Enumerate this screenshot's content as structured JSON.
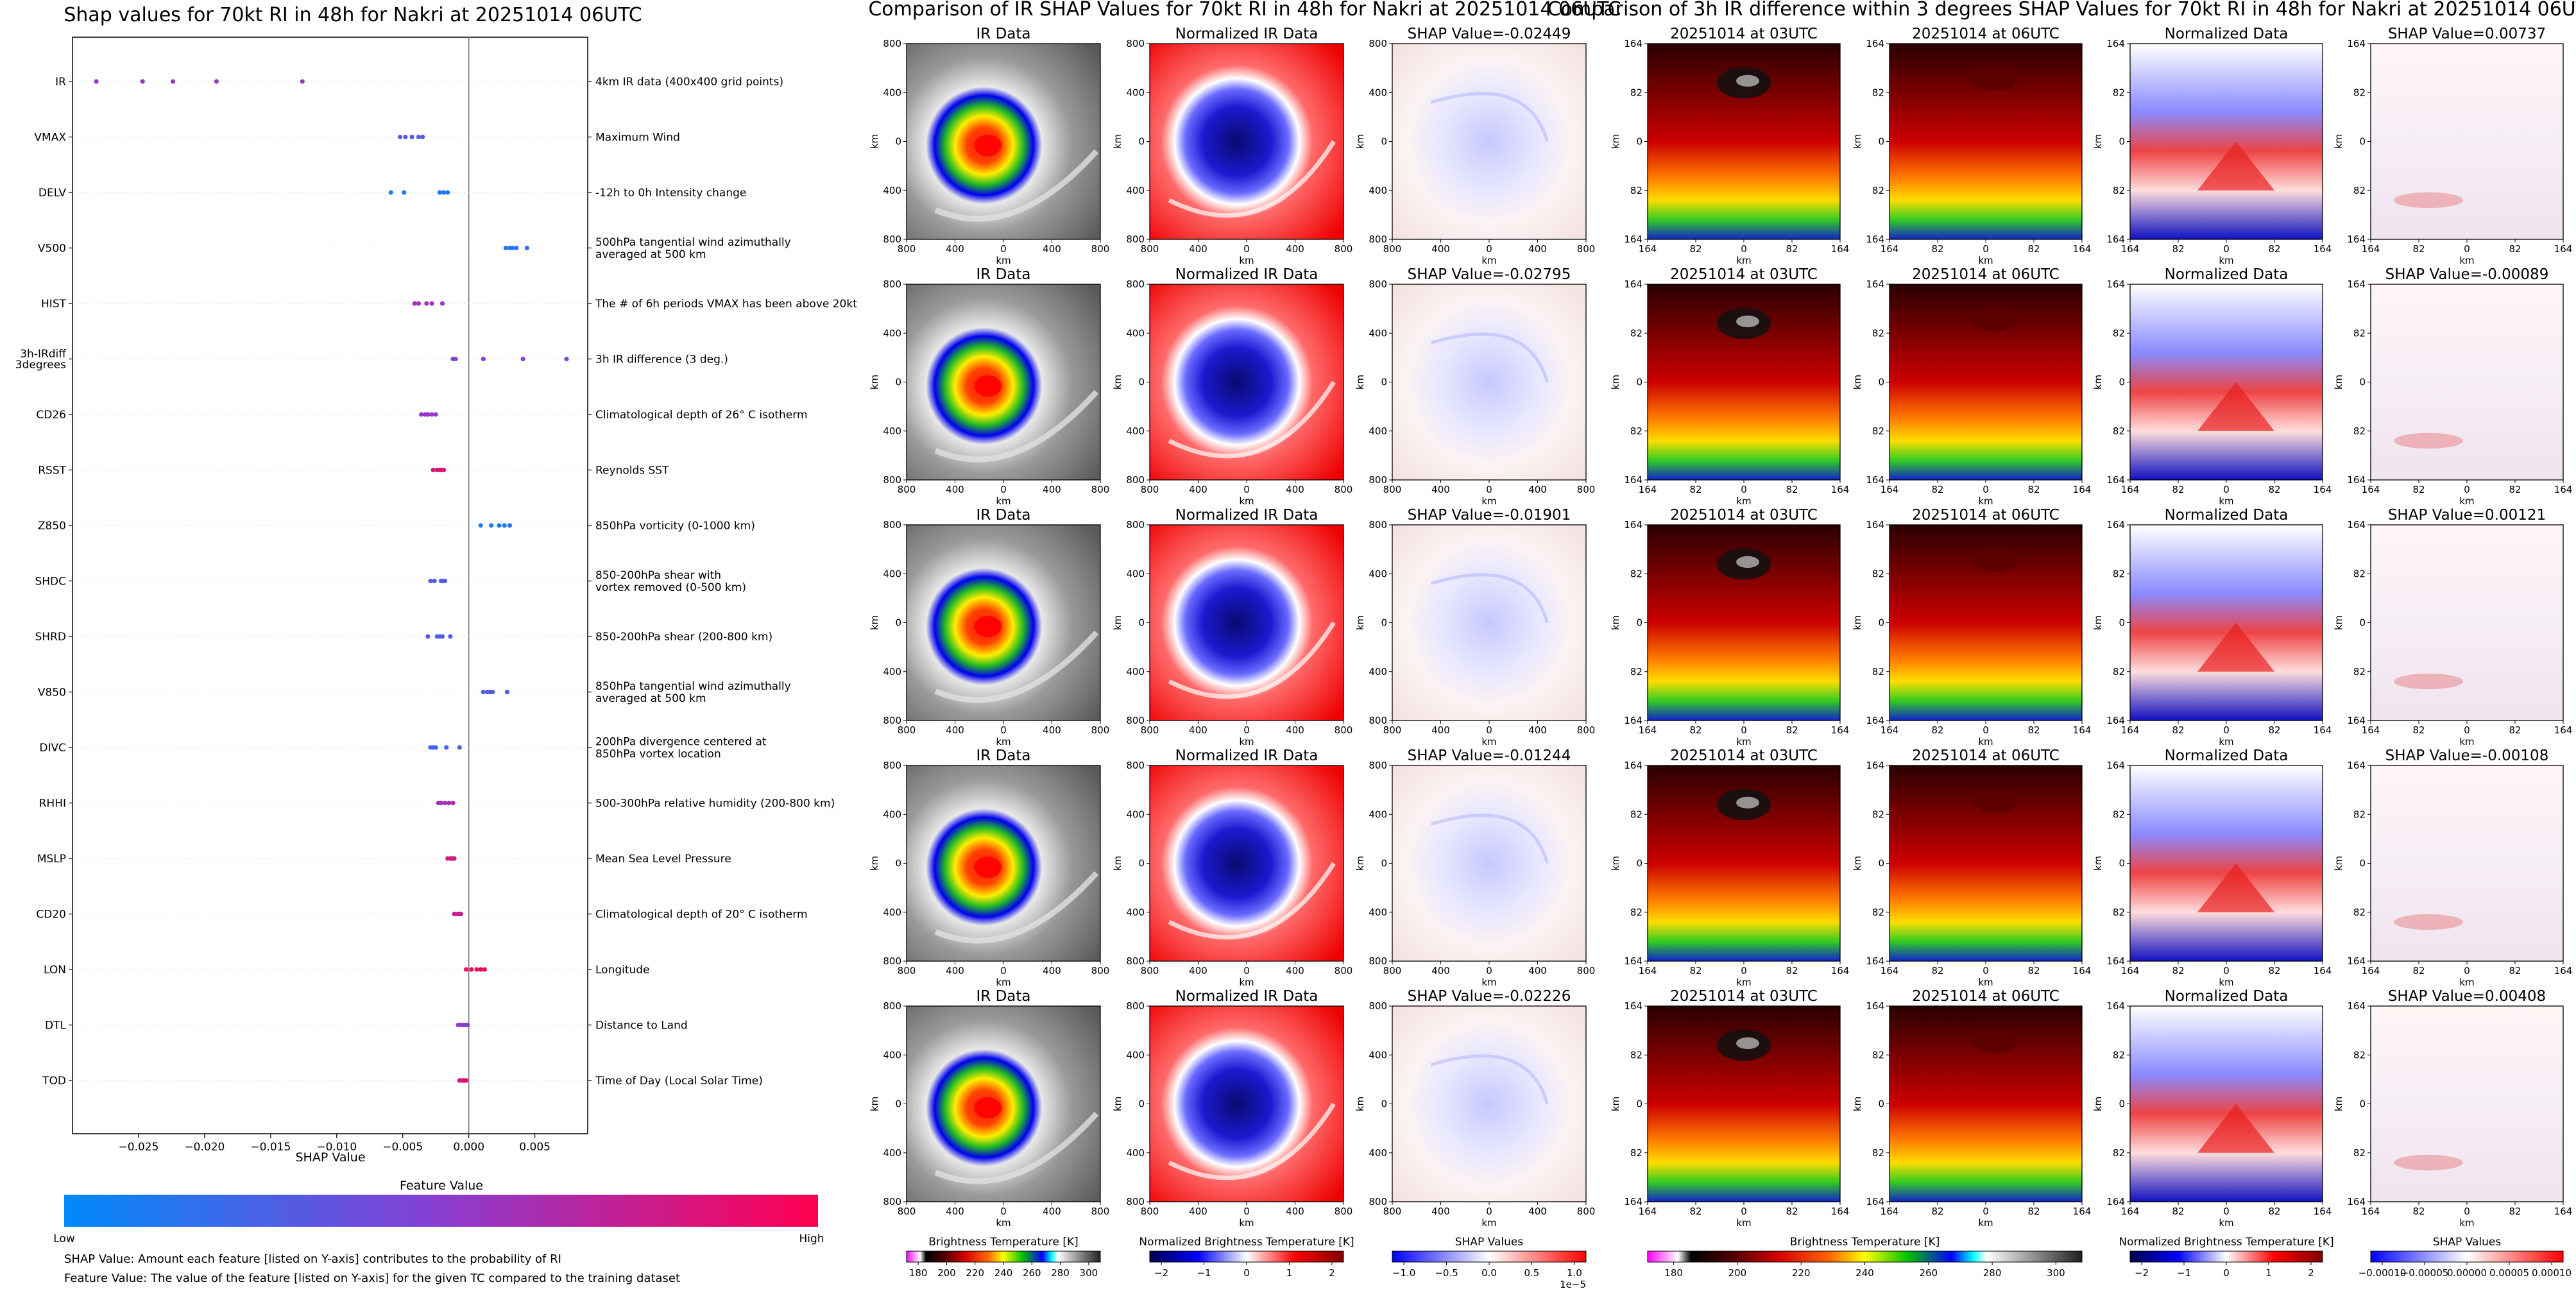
{
  "chart_data": [
    {
      "type": "scatter",
      "title": "Shap values for 70kt RI in 48h for Nakri at 20251014 06UTC",
      "xlabel": "SHAP Value",
      "xlim": [
        -0.03,
        0.009
      ],
      "xticks": [
        -0.025,
        -0.02,
        -0.015,
        -0.01,
        -0.005,
        0.0,
        0.005
      ],
      "xtick_labels": [
        "−0.025",
        "−0.020",
        "−0.015",
        "−0.010",
        "−0.005",
        "0.000",
        "0.005"
      ],
      "features": [
        {
          "code": "IR",
          "desc": "4km IR data (400x400 grid points)",
          "points": [
            [
              -0.0282,
              0.55
            ],
            [
              -0.0247,
              0.55
            ],
            [
              -0.0224,
              0.55
            ],
            [
              -0.0191,
              0.55
            ],
            [
              -0.0126,
              0.55
            ]
          ]
        },
        {
          "code": "VMAX",
          "desc": "Maximum Wind",
          "points": [
            [
              -0.0052,
              0.3
            ],
            [
              -0.0048,
              0.35
            ],
            [
              -0.0043,
              0.35
            ],
            [
              -0.0038,
              0.3
            ],
            [
              -0.0035,
              0.35
            ]
          ]
        },
        {
          "code": "DELV",
          "desc": "-12h to 0h Intensity change",
          "points": [
            [
              -0.0059,
              0.05
            ],
            [
              -0.0049,
              0.1
            ],
            [
              -0.0022,
              0.1
            ],
            [
              -0.0019,
              0.1
            ],
            [
              -0.0016,
              0.1
            ]
          ]
        },
        {
          "code": "V500",
          "desc": "500hPa tangential wind azimuthally\naveraged at 500 km",
          "points": [
            [
              0.0028,
              0.15
            ],
            [
              0.0031,
              0.15
            ],
            [
              0.0033,
              0.15
            ],
            [
              0.0036,
              0.15
            ],
            [
              0.0044,
              0.15
            ]
          ]
        },
        {
          "code": "HIST",
          "desc": "The # of 6h periods VMAX has been above 20kt",
          "points": [
            [
              -0.0041,
              0.6
            ],
            [
              -0.0038,
              0.6
            ],
            [
              -0.0032,
              0.6
            ],
            [
              -0.0028,
              0.6
            ],
            [
              -0.002,
              0.5
            ]
          ]
        },
        {
          "code": "3h-IRdiff\n3degrees",
          "desc": "3h IR difference (3 deg.)",
          "points": [
            [
              -0.0012,
              0.45
            ],
            [
              -0.001,
              0.45
            ],
            [
              0.0011,
              0.45
            ],
            [
              0.0041,
              0.45
            ],
            [
              0.0074,
              0.45
            ]
          ]
        },
        {
          "code": "CD26",
          "desc": "Climatological depth of 26° C isotherm",
          "points": [
            [
              -0.0036,
              0.55
            ],
            [
              -0.0033,
              0.55
            ],
            [
              -0.0031,
              0.55
            ],
            [
              -0.0028,
              0.55
            ],
            [
              -0.0025,
              0.5
            ]
          ]
        },
        {
          "code": "RSST",
          "desc": "Reynolds SST",
          "points": [
            [
              -0.0027,
              0.85
            ],
            [
              -0.0024,
              0.85
            ],
            [
              -0.0022,
              0.85
            ],
            [
              -0.0021,
              0.85
            ],
            [
              -0.0019,
              0.85
            ]
          ]
        },
        {
          "code": "Z850",
          "desc": "850hPa vorticity (0-1000 km)",
          "points": [
            [
              0.0009,
              0.1
            ],
            [
              0.0017,
              0.1
            ],
            [
              0.0023,
              0.1
            ],
            [
              0.0027,
              0.1
            ],
            [
              0.0031,
              0.15
            ]
          ]
        },
        {
          "code": "SHDC",
          "desc": "850-200hPa shear with\nvortex removed (0-500 km)",
          "points": [
            [
              -0.0029,
              0.3
            ],
            [
              -0.0026,
              0.3
            ],
            [
              -0.0021,
              0.3
            ],
            [
              -0.002,
              0.3
            ],
            [
              -0.0018,
              0.3
            ]
          ]
        },
        {
          "code": "SHRD",
          "desc": "850-200hPa shear (200-800 km)",
          "points": [
            [
              -0.0031,
              0.35
            ],
            [
              -0.0024,
              0.3
            ],
            [
              -0.0022,
              0.3
            ],
            [
              -0.002,
              0.3
            ],
            [
              -0.0014,
              0.3
            ]
          ]
        },
        {
          "code": "V850",
          "desc": "850hPa tangential wind azimuthally\naveraged at 500 km",
          "points": [
            [
              0.0011,
              0.3
            ],
            [
              0.0014,
              0.3
            ],
            [
              0.0016,
              0.3
            ],
            [
              0.0018,
              0.3
            ],
            [
              0.0029,
              0.3
            ]
          ]
        },
        {
          "code": "DIVC",
          "desc": "200hPa divergence centered at\n850hPa vortex location",
          "points": [
            [
              -0.0029,
              0.25
            ],
            [
              -0.0027,
              0.25
            ],
            [
              -0.0025,
              0.25
            ],
            [
              -0.0017,
              0.25
            ],
            [
              -0.0007,
              0.25
            ]
          ]
        },
        {
          "code": "RHHI",
          "desc": "500-300hPa relative humidity (200-800 km)",
          "points": [
            [
              -0.0023,
              0.6
            ],
            [
              -0.0021,
              0.6
            ],
            [
              -0.0018,
              0.6
            ],
            [
              -0.0015,
              0.6
            ],
            [
              -0.0012,
              0.65
            ]
          ]
        },
        {
          "code": "MSLP",
          "desc": "Mean Sea Level Pressure",
          "points": [
            [
              -0.0016,
              0.8
            ],
            [
              -0.0014,
              0.8
            ],
            [
              -0.0013,
              0.8
            ],
            [
              -0.0012,
              0.8
            ],
            [
              -0.0011,
              0.8
            ]
          ]
        },
        {
          "code": "CD20",
          "desc": "Climatological depth of 20° C isotherm",
          "points": [
            [
              -0.0011,
              0.75
            ],
            [
              -0.001,
              0.75
            ],
            [
              -0.0008,
              0.75
            ],
            [
              -0.0007,
              0.75
            ],
            [
              -0.0006,
              0.75
            ]
          ]
        },
        {
          "code": "LON",
          "desc": "Longitude",
          "points": [
            [
              -0.0002,
              0.95
            ],
            [
              0.0002,
              0.95
            ],
            [
              0.0006,
              0.95
            ],
            [
              0.0009,
              0.95
            ],
            [
              0.0012,
              0.95
            ]
          ]
        },
        {
          "code": "DTL",
          "desc": "Distance to Land",
          "points": [
            [
              -0.0008,
              0.5
            ],
            [
              -0.0006,
              0.5
            ],
            [
              -0.0004,
              0.5
            ],
            [
              -0.0003,
              0.5
            ],
            [
              -0.0001,
              0.5
            ]
          ]
        },
        {
          "code": "TOD",
          "desc": "Time of Day (Local Solar Time)",
          "points": [
            [
              -0.0007,
              0.85
            ],
            [
              -0.0005,
              0.85
            ],
            [
              -0.0004,
              0.85
            ],
            [
              -0.0003,
              0.85
            ],
            [
              -0.0002,
              0.85
            ]
          ]
        }
      ],
      "colorbar": {
        "title": "Feature Value",
        "low": "Low",
        "high": "High"
      },
      "notes": [
        "SHAP Value: Amount each feature [listed on Y-axis] contributes to the probability of RI",
        "Feature Value: The value of the feature [listed on Y-axis] for the given TC compared to the training dataset"
      ]
    },
    {
      "type": "heatmap",
      "title": "Comparison of IR SHAP Values for 70kt RI in 48h for Nakri at 20251014 06UTC",
      "axis_unit": "km",
      "tick_labels": [
        "800",
        "400",
        "0",
        "400",
        "800"
      ],
      "columns": [
        "IR Data",
        "Normalized IR Data"
      ],
      "shap_titles": [
        "SHAP Value=-0.02449",
        "SHAP Value=-0.02795",
        "SHAP Value=-0.01901",
        "SHAP Value=-0.01244",
        "SHAP Value=-0.02226"
      ],
      "colorbars": [
        {
          "label": "Brightness Temperature [K]",
          "ticks": [
            "180",
            "200",
            "220",
            "240",
            "260",
            "280",
            "300"
          ]
        },
        {
          "label": "Normalized Brightness Temperature [K]",
          "ticks": [
            "−2",
            "−1",
            "0",
            "1",
            "2"
          ]
        },
        {
          "label": "SHAP Values",
          "ticks": [
            "−1.0",
            "−0.5",
            "0.0",
            "0.5",
            "1.0"
          ],
          "offset": "1e−5"
        }
      ]
    },
    {
      "type": "heatmap",
      "title": "Comparison of 3h IR difference within 3 degrees SHAP Values for 70kt RI in 48h for Nakri at 20251014 06UTC",
      "axis_unit": "km",
      "tick_labels": [
        "164",
        "82",
        "0",
        "82",
        "164"
      ],
      "columns": [
        "20251014 at 03UTC",
        "20251014 at 06UTC",
        "Normalized Data"
      ],
      "shap_titles": [
        "SHAP Value=0.00737",
        "SHAP Value=-0.00089",
        "SHAP Value=0.00121",
        "SHAP Value=-0.00108",
        "SHAP Value=0.00408"
      ],
      "colorbars": [
        {
          "label": "Brightness Temperature [K]",
          "ticks": [
            "180",
            "200",
            "220",
            "240",
            "260",
            "280",
            "300"
          ]
        },
        {
          "label": "Normalized Brightness Temperature [K]",
          "ticks": [
            "−2",
            "−1",
            "0",
            "1",
            "2"
          ]
        },
        {
          "label": "SHAP Values",
          "ticks": [
            "−0.00010",
            "−0.00005",
            "0.00000",
            "0.00005",
            "0.00010"
          ]
        }
      ]
    }
  ]
}
